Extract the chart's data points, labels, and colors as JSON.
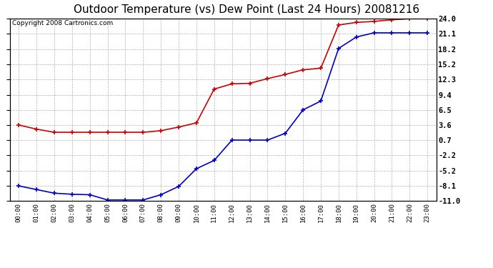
{
  "title": "Outdoor Temperature (vs) Dew Point (Last 24 Hours) 20081216",
  "copyright_text": "Copyright 2008 Cartronics.com",
  "hours": [
    "00:00",
    "01:00",
    "02:00",
    "03:00",
    "04:00",
    "05:00",
    "06:00",
    "07:00",
    "08:00",
    "09:00",
    "10:00",
    "11:00",
    "12:00",
    "13:00",
    "14:00",
    "15:00",
    "16:00",
    "17:00",
    "18:00",
    "19:00",
    "20:00",
    "21:00",
    "22:00",
    "23:00"
  ],
  "temp_red": [
    3.6,
    2.8,
    2.2,
    2.2,
    2.2,
    2.2,
    2.2,
    2.2,
    2.5,
    3.2,
    4.0,
    10.5,
    11.5,
    11.6,
    12.5,
    13.3,
    14.2,
    14.5,
    22.8,
    23.3,
    23.5,
    23.8,
    24.0,
    24.0
  ],
  "temp_blue": [
    -8.1,
    -8.8,
    -9.5,
    -9.7,
    -9.8,
    -10.8,
    -10.8,
    -10.8,
    -9.8,
    -8.2,
    -4.8,
    -3.2,
    0.7,
    0.7,
    0.7,
    2.0,
    6.5,
    8.2,
    18.3,
    20.5,
    21.3,
    21.3,
    21.3,
    21.3
  ],
  "ylim": [
    -11.0,
    24.0
  ],
  "yticks": [
    24.0,
    21.1,
    18.2,
    15.2,
    12.3,
    9.4,
    6.5,
    3.6,
    0.7,
    -2.2,
    -5.2,
    -8.1,
    -11.0
  ],
  "red_color": "#cc0000",
  "blue_color": "#0000cc",
  "grid_color": "#aaaaaa",
  "bg_color": "#ffffff",
  "title_fontsize": 11,
  "copyright_fontsize": 6.5
}
